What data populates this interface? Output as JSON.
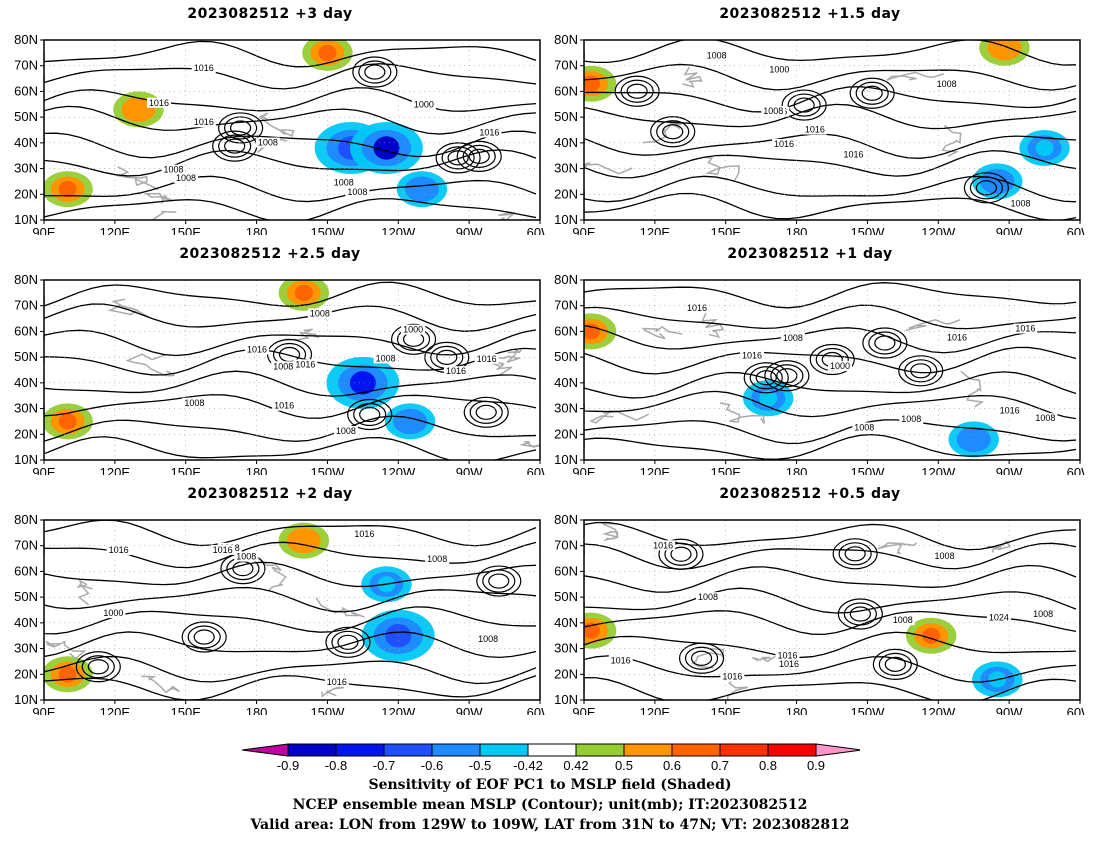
{
  "chart_data": {
    "type": "heatmap",
    "panels": [
      {
        "title": "2023082512  +3 day",
        "sensitivity_regions": [
          {
            "lon": 220,
            "lat": 38,
            "value": -0.7
          },
          {
            "lon": 235,
            "lat": 38,
            "value": -0.9
          },
          {
            "lon": 250,
            "lat": 22,
            "value": -0.6
          },
          {
            "lon": 130,
            "lat": 53,
            "value": 0.5
          },
          {
            "lon": 100,
            "lat": 22,
            "value": 0.6
          },
          {
            "lon": 210,
            "lat": 75,
            "value": 0.6
          }
        ],
        "contour_labels": [
          "1008",
          "1016",
          "1008",
          "1016",
          "1000",
          "1008",
          "1016",
          "1016",
          "1008",
          "1008"
        ]
      },
      {
        "title": "2023082512  +1.5 day",
        "sensitivity_regions": [
          {
            "lon": 265,
            "lat": 25,
            "value": -0.6
          },
          {
            "lon": 285,
            "lat": 38,
            "value": -0.5
          },
          {
            "lon": 93,
            "lat": 63,
            "value": 0.6
          },
          {
            "lon": 268,
            "lat": 77,
            "value": 0.5
          }
        ],
        "contour_labels": [
          "1008",
          "1016",
          "1000",
          "1008",
          "1016",
          "1016",
          "1008",
          "1016",
          "1008"
        ]
      },
      {
        "title": "2023082512  +2.5 day",
        "sensitivity_regions": [
          {
            "lon": 225,
            "lat": 40,
            "value": -0.8
          },
          {
            "lon": 245,
            "lat": 25,
            "value": -0.6
          },
          {
            "lon": 100,
            "lat": 25,
            "value": 0.6
          },
          {
            "lon": 200,
            "lat": 75,
            "value": 0.6
          }
        ],
        "contour_labels": [
          "1016",
          "1008",
          "1016",
          "1008",
          "1016",
          "1008",
          "1000",
          "1016",
          "1016",
          "1008",
          "1008"
        ]
      },
      {
        "title": "2023082512  +1 day",
        "sensitivity_regions": [
          {
            "lon": 255,
            "lat": 18,
            "value": -0.6
          },
          {
            "lon": 168,
            "lat": 34,
            "value": -0.5
          },
          {
            "lon": 93,
            "lat": 60,
            "value": 0.6
          }
        ],
        "contour_labels": [
          "1008",
          "1016",
          "1008",
          "1016",
          "1000",
          "1008",
          "1016",
          "1008",
          "1016",
          "1016"
        ]
      },
      {
        "title": "2023082512  +2 day",
        "sensitivity_regions": [
          {
            "lon": 240,
            "lat": 35,
            "value": -0.7
          },
          {
            "lon": 235,
            "lat": 55,
            "value": -0.5
          },
          {
            "lon": 100,
            "lat": 20,
            "value": 0.6
          },
          {
            "lon": 200,
            "lat": 72,
            "value": 0.5
          }
        ],
        "contour_labels": [
          "1016",
          "1008",
          "1008",
          "1008",
          "1000",
          "1016",
          "1016",
          "1016",
          "1008"
        ]
      },
      {
        "title": "2023082512  +0.5 day",
        "sensitivity_regions": [
          {
            "lon": 265,
            "lat": 18,
            "value": -0.5
          },
          {
            "lon": 237,
            "lat": 35,
            "value": 0.6
          },
          {
            "lon": 93,
            "lat": 37,
            "value": 0.6
          }
        ],
        "contour_labels": [
          "1008",
          "1016",
          "1008",
          "1016",
          "1008",
          "1016",
          "1016",
          "1008",
          "1024",
          "1016"
        ]
      }
    ],
    "lat_ticks": [
      "80N",
      "70N",
      "60N",
      "50N",
      "40N",
      "30N",
      "20N",
      "10N"
    ],
    "lon_ticks": [
      "90E",
      "120E",
      "150E",
      "180",
      "150W",
      "120W",
      "90W",
      "60W"
    ],
    "lon_range": [
      90,
      300
    ],
    "lat_range": [
      10,
      80
    ],
    "colorbar": {
      "ticks": [
        "-0.9",
        "-0.8",
        "-0.7",
        "-0.6",
        "-0.5",
        "-0.42",
        "0.42",
        "0.5",
        "0.6",
        "0.7",
        "0.8",
        "0.9"
      ],
      "colors": [
        "#c000a0",
        "#0000c8",
        "#0014f0",
        "#1e50ff",
        "#1e8cff",
        "#00c8f5",
        "#ffffff",
        "#96cd32",
        "#ff9600",
        "#ff6400",
        "#ff3200",
        "#ff0000",
        "#ff96c8"
      ]
    },
    "caption_lines": [
      "Sensitivity of EOF PC1 to MSLP field (Shaded)",
      "NCEP ensemble mean MSLP (Contour); unit(mb); IT:2023082512",
      "Valid area: LON from 129W to 109W, LAT from 31N to 47N; VT: 2023082812"
    ]
  }
}
